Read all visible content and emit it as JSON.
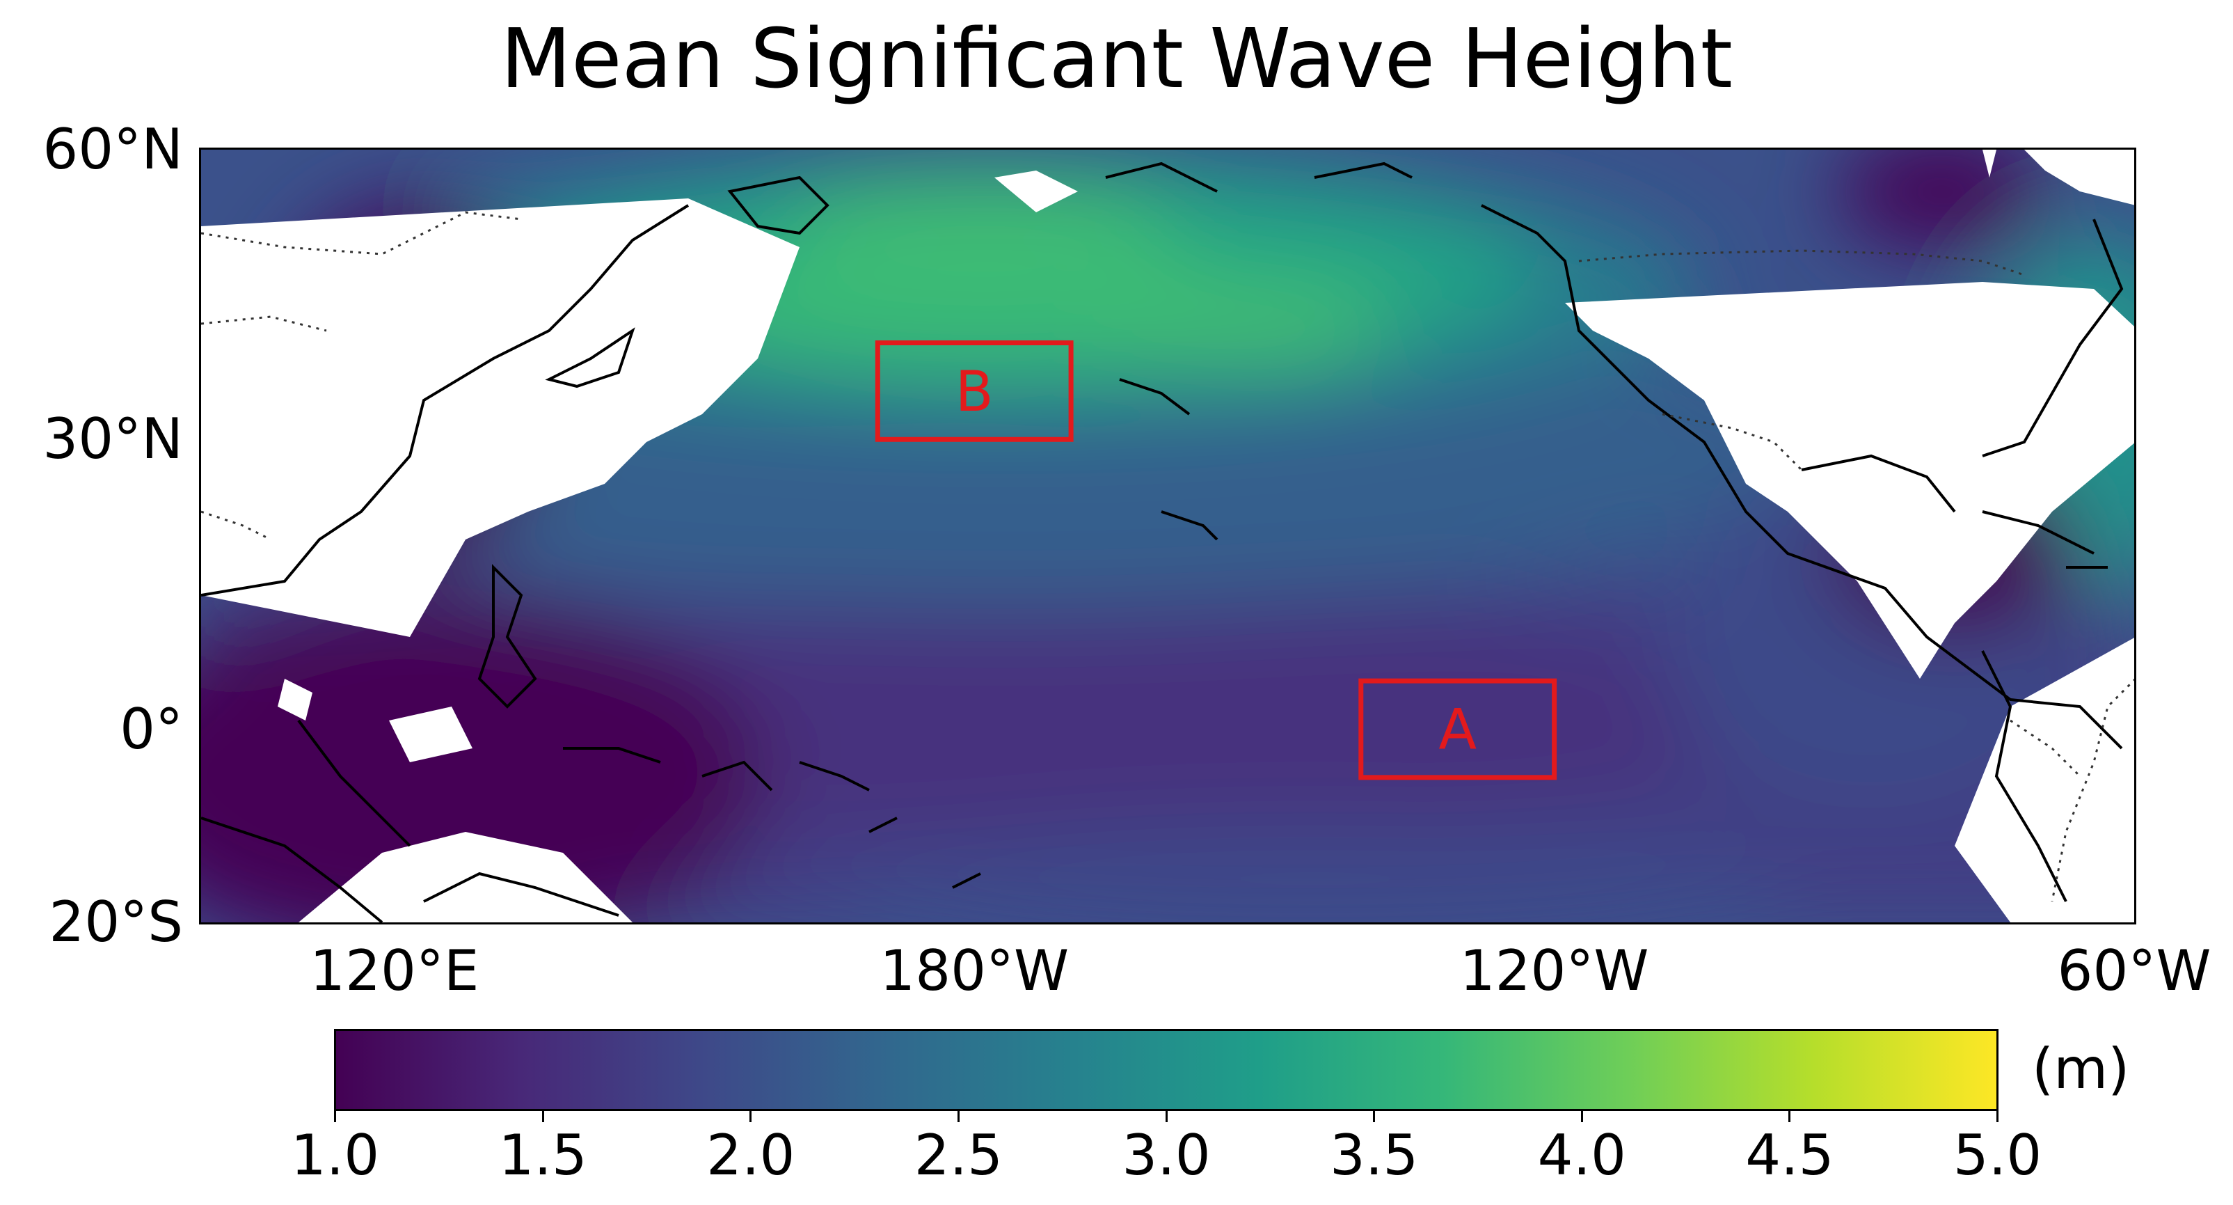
{
  "title": "Mean Significant Wave Height",
  "map": {
    "lat_ticks": [
      {
        "label": "60°N",
        "lat": 60
      },
      {
        "label": "30°N",
        "lat": 30
      },
      {
        "label": "0°",
        "lat": 0
      },
      {
        "label": "20°S",
        "lat": -20
      }
    ],
    "lon_ticks": [
      {
        "label": "120°E",
        "lon": 120
      },
      {
        "label": "180°W",
        "lon": 180
      },
      {
        "label": "120°W",
        "lon": 240
      },
      {
        "label": "60°W",
        "lon": 300
      }
    ],
    "extent": {
      "lon_min": 100,
      "lon_max": 300,
      "lat_min": -20,
      "lat_max": 60
    },
    "regions": [
      {
        "label": "A",
        "color": "#e31a1c",
        "lon_min": 220,
        "lon_max": 240,
        "lat_min": -5,
        "lat_max": 5
      },
      {
        "label": "B",
        "color": "#e31a1c",
        "lon_min": 170,
        "lon_max": 190,
        "lat_min": 30,
        "lat_max": 40
      }
    ]
  },
  "colorbar": {
    "unit": "(m)",
    "min": 1.0,
    "max": 5.0,
    "colormap": "viridis",
    "ticks": [
      "1.0",
      "1.5",
      "2.0",
      "2.5",
      "3.0",
      "3.5",
      "4.0",
      "4.5",
      "5.0"
    ],
    "colors": [
      "#440154",
      "#482878",
      "#3e4989",
      "#31688e",
      "#26828e",
      "#1f9e89",
      "#35b779",
      "#6ece58",
      "#b5de2b",
      "#fde725"
    ]
  }
}
